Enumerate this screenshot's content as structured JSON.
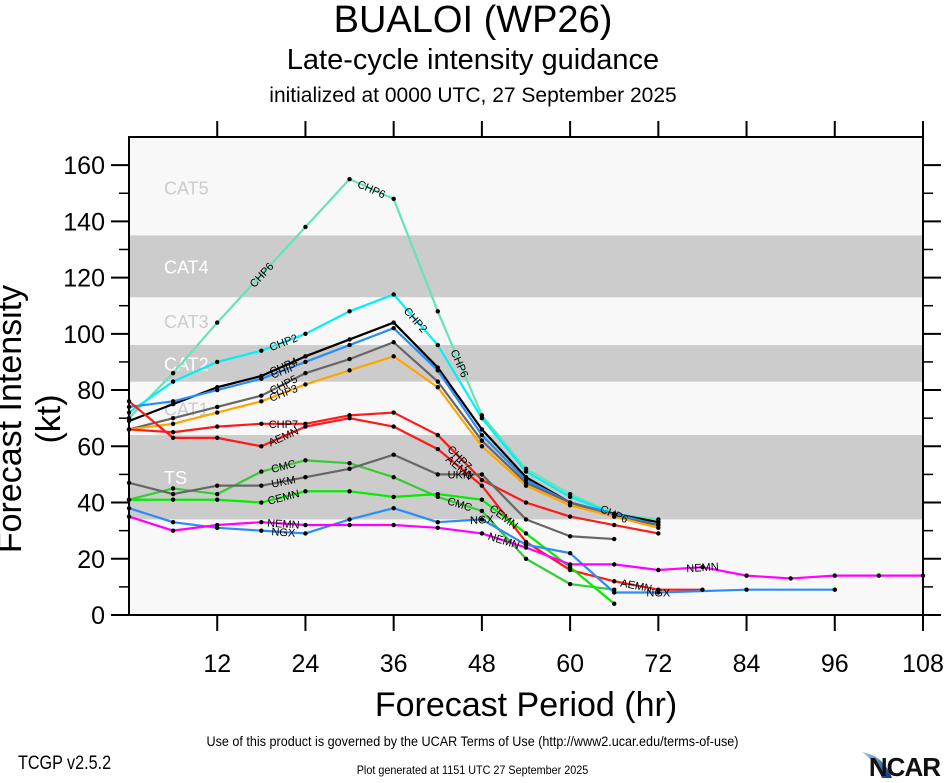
{
  "header": {
    "title": "BUALOI (WP26)",
    "subtitle": "Late-cycle intensity guidance",
    "init_line": "initialized at 0000 UTC, 27 September 2025"
  },
  "footer": {
    "terms": "Use of this product is governed by the UCAR Terms of Use (http://www2.ucar.edu/terms-of-use)",
    "version": "TCGP v2.5.2",
    "generated": "Plot generated at 1151 UTC   27 September 2025",
    "logo_text": "NCAR"
  },
  "chart_data": {
    "type": "line",
    "title": "BUALOI (WP26)",
    "subtitle": "Late-cycle intensity guidance",
    "xlabel": "Forecast Period (hr)",
    "ylabel": "Forecast Intensity (kt)",
    "xlim": [
      0,
      108
    ],
    "ylim": [
      0,
      170
    ],
    "xticks": [
      12,
      24,
      36,
      48,
      60,
      72,
      84,
      96,
      108
    ],
    "yticks": [
      0,
      20,
      40,
      60,
      80,
      100,
      120,
      140,
      160
    ],
    "grid": false,
    "bands": [
      {
        "label": "TS",
        "from": 34,
        "to": 64,
        "shade": "dark"
      },
      {
        "label": "CAT1",
        "from": 64,
        "to": 83,
        "shade": "light"
      },
      {
        "label": "CAT2",
        "from": 83,
        "to": 96,
        "shade": "dark"
      },
      {
        "label": "CAT3",
        "from": 96,
        "to": 113,
        "shade": "light"
      },
      {
        "label": "CAT4",
        "from": 113,
        "to": 135,
        "shade": "dark"
      },
      {
        "label": "CAT5",
        "from": 135,
        "to": 170,
        "shade": "light"
      }
    ],
    "series": [
      {
        "name": "CHP6",
        "color": "#66e3b8",
        "label_at": 1.0,
        "x": [
          0,
          6,
          12,
          24,
          30,
          36,
          42,
          48,
          54,
          60,
          66,
          72
        ],
        "values": [
          70,
          86,
          104,
          138,
          155,
          148,
          108,
          71,
          52,
          43,
          36,
          34
        ]
      },
      {
        "name": "CHP2",
        "color": "#00f0f5",
        "x": [
          0,
          6,
          12,
          18,
          24,
          30,
          36,
          42,
          48,
          54,
          60,
          66,
          72
        ],
        "values": [
          72,
          83,
          90,
          94,
          100,
          108,
          114,
          96,
          70,
          51,
          42,
          36,
          33
        ]
      },
      {
        "name": "CHP4",
        "color": "#000000",
        "x": [
          0,
          6,
          12,
          18,
          24,
          30,
          36,
          42,
          48,
          54,
          60,
          66,
          72
        ],
        "values": [
          69,
          75,
          81,
          85,
          92,
          98,
          104,
          88,
          66,
          49,
          40,
          36,
          33
        ]
      },
      {
        "name": "CHIP",
        "color": "#2a8cf5",
        "x": [
          0,
          6,
          12,
          18,
          24,
          30,
          36,
          42,
          48,
          54,
          60,
          66,
          72
        ],
        "values": [
          74,
          76,
          80,
          84,
          90,
          96,
          102,
          87,
          64,
          48,
          40,
          36,
          32
        ]
      },
      {
        "name": "CHP5",
        "color": "#666666",
        "x": [
          0,
          6,
          12,
          18,
          24,
          30,
          36,
          42,
          48,
          54,
          60,
          66,
          72
        ],
        "values": [
          66,
          70,
          74,
          78,
          86,
          91,
          97,
          83,
          62,
          47,
          40,
          35,
          32
        ]
      },
      {
        "name": "CHP3",
        "color": "#ffa500",
        "x": [
          0,
          6,
          12,
          18,
          24,
          30,
          36,
          42,
          48,
          54,
          60,
          66,
          72
        ],
        "values": [
          66,
          68,
          72,
          76,
          82,
          87,
          92,
          81,
          60,
          46,
          39,
          35,
          31
        ]
      },
      {
        "name": "CHP7",
        "color": "#ff1a1a",
        "x": [
          0,
          6,
          12,
          18,
          24,
          30,
          36,
          42,
          48,
          54,
          60,
          66,
          72
        ],
        "values": [
          66,
          65,
          67,
          68,
          68,
          71,
          72,
          64,
          48,
          40,
          35,
          32,
          29
        ]
      },
      {
        "name": "AEMN",
        "color": "#ff1a1a",
        "x": [
          0,
          6,
          12,
          18,
          24,
          30,
          36,
          42,
          48,
          54,
          60,
          66,
          72,
          78
        ],
        "values": [
          76,
          63,
          63,
          60,
          67,
          70,
          67,
          59,
          46,
          26,
          16,
          12,
          9,
          9
        ]
      },
      {
        "name": "CMC",
        "color": "#33cc33",
        "x": [
          0,
          6,
          12,
          18,
          24,
          30,
          36,
          42,
          48,
          54,
          60,
          66
        ],
        "values": [
          41,
          45,
          43,
          51,
          55,
          54,
          49,
          42,
          37,
          20,
          11,
          9
        ]
      },
      {
        "name": "UKM",
        "color": "#666666",
        "x": [
          0,
          6,
          12,
          18,
          24,
          30,
          36,
          42,
          48,
          54,
          60,
          66
        ],
        "values": [
          47,
          43,
          46,
          46,
          49,
          52,
          57,
          50,
          50,
          34,
          28,
          27
        ]
      },
      {
        "name": "CEMN",
        "color": "#00ee00",
        "x": [
          0,
          6,
          12,
          18,
          24,
          30,
          36,
          42,
          48,
          54,
          60,
          66
        ],
        "values": [
          41,
          41,
          41,
          40,
          44,
          44,
          42,
          43,
          41,
          29,
          17,
          4
        ]
      },
      {
        "name": "NGX",
        "color": "#2a8cf5",
        "x": [
          0,
          6,
          12,
          18,
          24,
          30,
          36,
          42,
          48,
          54,
          60,
          66,
          72,
          84,
          96
        ],
        "values": [
          38,
          33,
          31,
          30,
          29,
          34,
          38,
          33,
          34,
          25,
          22,
          8,
          8,
          9,
          9
        ]
      },
      {
        "name": "NEMN",
        "color": "#ff00ff",
        "x": [
          0,
          6,
          12,
          18,
          24,
          30,
          36,
          42,
          48,
          54,
          60,
          66,
          72,
          78,
          84,
          90,
          96,
          102,
          108
        ],
        "values": [
          35,
          30,
          32,
          33,
          32,
          32,
          32,
          31,
          29,
          24,
          18,
          18,
          16,
          17,
          14,
          13,
          14,
          14,
          14
        ]
      }
    ],
    "annotations": [
      {
        "series": "CHP6",
        "at_hr": 18
      },
      {
        "series": "CHP6",
        "at_hr": 33
      },
      {
        "series": "CHP6",
        "at_hr": 45
      },
      {
        "series": "CHP6",
        "at_hr": 66
      },
      {
        "series": "CHP2",
        "at_hr": 21
      },
      {
        "series": "CHP2",
        "at_hr": 39
      },
      {
        "series": "CHP4",
        "at_hr": 21
      },
      {
        "series": "CHIP",
        "at_hr": 21
      },
      {
        "series": "CHP5",
        "at_hr": 21
      },
      {
        "series": "CHP3",
        "at_hr": 21
      },
      {
        "series": "CHP7",
        "at_hr": 21
      },
      {
        "series": "AEMN",
        "at_hr": 21
      },
      {
        "series": "CMC",
        "at_hr": 21
      },
      {
        "series": "UKM",
        "at_hr": 21
      },
      {
        "series": "CEMN",
        "at_hr": 21
      },
      {
        "series": "NEMN",
        "at_hr": 21
      },
      {
        "series": "NGX",
        "at_hr": 21
      },
      {
        "series": "CHP7",
        "at_hr": 45
      },
      {
        "series": "AEMN",
        "at_hr": 45
      },
      {
        "series": "UKM",
        "at_hr": 45
      },
      {
        "series": "CMC",
        "at_hr": 45
      },
      {
        "series": "CEMN",
        "at_hr": 51
      },
      {
        "series": "NGX",
        "at_hr": 48
      },
      {
        "series": "NEMN",
        "at_hr": 51
      },
      {
        "series": "AEMN",
        "at_hr": 69
      },
      {
        "series": "NGX",
        "at_hr": 72
      },
      {
        "series": "NEMN",
        "at_hr": 78
      }
    ]
  }
}
